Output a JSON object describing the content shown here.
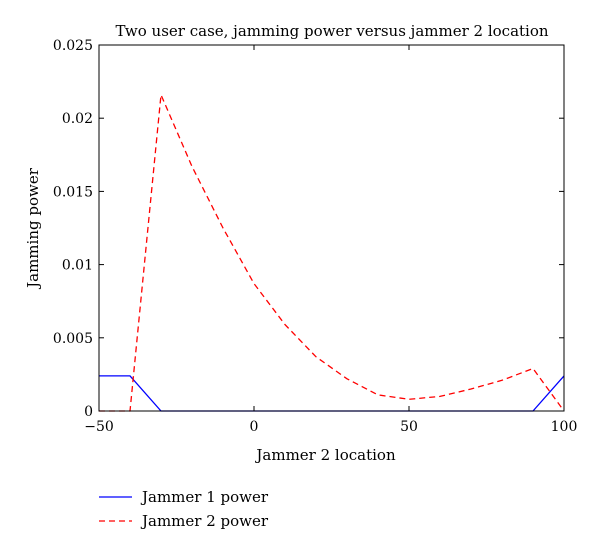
{
  "chart_data": {
    "type": "line",
    "title": "Two user case, jamming power versus jammer 2 location",
    "xlabel": "Jammer 2 location",
    "ylabel": "Jamming power",
    "xlim": [
      -50,
      100
    ],
    "ylim": [
      0,
      0.025
    ],
    "xticks": [
      -50,
      0,
      50,
      100
    ],
    "xtick_labels": [
      "−50",
      "0",
      "50",
      "100"
    ],
    "yticks": [
      0,
      0.005,
      0.01,
      0.015,
      0.02,
      0.025
    ],
    "ytick_labels": [
      "0",
      "0.005",
      "0.01",
      "0.015",
      "0.02",
      "0.025"
    ],
    "grid": false,
    "legend_position": "bottom-left, outside plot",
    "series": [
      {
        "name": "Jammer 1 power",
        "color": "#0000ff",
        "style": "solid",
        "x": [
          -50,
          -40,
          -30,
          90,
          100
        ],
        "y": [
          0.0024,
          0.0024,
          0,
          0,
          0.0024
        ]
      },
      {
        "name": "Jammer 2 power",
        "color": "#ff0000",
        "style": "dashed",
        "x": [
          -50,
          -40,
          -30,
          -20,
          -10,
          0,
          10,
          20,
          30,
          40,
          50,
          60,
          70,
          80,
          90,
          100
        ],
        "y": [
          0,
          0,
          0.0216,
          0.0167,
          0.0125,
          0.0087,
          0.0059,
          0.0037,
          0.0022,
          0.0011,
          0.0008,
          0.001,
          0.0015,
          0.0021,
          0.0029,
          0
        ]
      }
    ]
  }
}
